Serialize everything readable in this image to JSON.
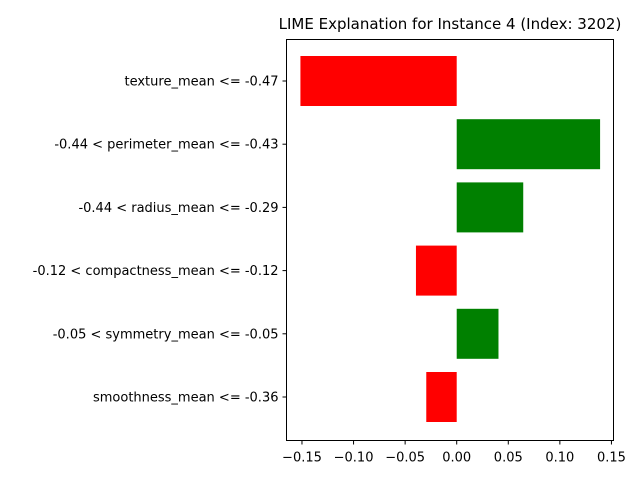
{
  "chart_data": {
    "type": "bar",
    "orientation": "horizontal",
    "title": "LIME Explanation for Instance 4 (Index: 3202)",
    "xlabel": "",
    "ylabel": "",
    "xlim": [
      -0.165,
      0.152
    ],
    "xticks": [
      -0.15,
      -0.1,
      -0.05,
      0.0,
      0.05,
      0.1,
      0.15
    ],
    "xtick_labels": [
      "−0.15",
      "−0.10",
      "−0.05",
      "0.00",
      "0.05",
      "0.10",
      "0.15"
    ],
    "categories": [
      "texture_mean <= -0.47",
      "-0.44 < perimeter_mean <= -0.43",
      "-0.44 < radius_mean <= -0.29",
      "-0.12 < compactness_mean <= -0.12",
      "-0.05 < symmetry_mean <= -0.05",
      "smoothness_mean <= -0.36"
    ],
    "values": [
      -0.1515,
      0.139,
      0.0645,
      -0.0395,
      0.0405,
      -0.0295
    ],
    "colors": {
      "positive": "#008000",
      "negative": "#ff0000"
    },
    "grid": false,
    "legend": "none"
  }
}
